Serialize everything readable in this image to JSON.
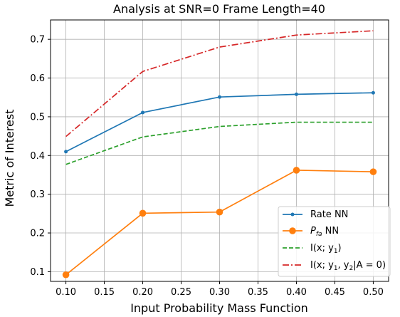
{
  "chart_data": {
    "type": "line",
    "title": "Analysis at SNR=0 Frame Length=40",
    "xlabel": "Input Probability Mass Function",
    "ylabel": "Metric of Interest",
    "x": [
      0.1,
      0.2,
      0.3,
      0.4,
      0.5
    ],
    "xlim": [
      0.08,
      0.52
    ],
    "ylim": [
      0.075,
      0.75
    ],
    "xticks": [
      0.1,
      0.15,
      0.2,
      0.25,
      0.3,
      0.35,
      0.4,
      0.45,
      0.5
    ],
    "xtick_labels": [
      "0.10",
      "0.15",
      "0.20",
      "0.25",
      "0.30",
      "0.35",
      "0.40",
      "0.45",
      "0.50"
    ],
    "yticks": [
      0.1,
      0.2,
      0.3,
      0.4,
      0.5,
      0.6,
      0.7
    ],
    "ytick_labels": [
      "0.1",
      "0.2",
      "0.3",
      "0.4",
      "0.5",
      "0.6",
      "0.7"
    ],
    "grid": true,
    "legend_position": "bottom-right",
    "series": [
      {
        "name": "Rate NN",
        "values": [
          0.41,
          0.511,
          0.551,
          0.558,
          0.562
        ],
        "color": "#1f77b4",
        "linestyle": "solid",
        "marker": "small-circle"
      },
      {
        "name_main": "P",
        "name_sub": "fa",
        "name_rest": " NN",
        "values": [
          0.092,
          0.251,
          0.254,
          0.362,
          0.358
        ],
        "color": "#ff7f0e",
        "linestyle": "solid",
        "marker": "large-circle"
      },
      {
        "name_main": "I(x; y",
        "name_sub": "1",
        "name_rest": ")",
        "values": [
          0.377,
          0.448,
          0.475,
          0.486,
          0.486
        ],
        "color": "#2ca02c",
        "linestyle": "dashed",
        "marker": "none"
      },
      {
        "name_main": "I(x; y",
        "name_sub": "1",
        "name_mid": ", y",
        "name_sub2": "2",
        "name_rest": "|A = 0)",
        "values": [
          0.449,
          0.617,
          0.68,
          0.711,
          0.722
        ],
        "color": "#d62728",
        "linestyle": "dashdot",
        "marker": "none"
      }
    ]
  }
}
